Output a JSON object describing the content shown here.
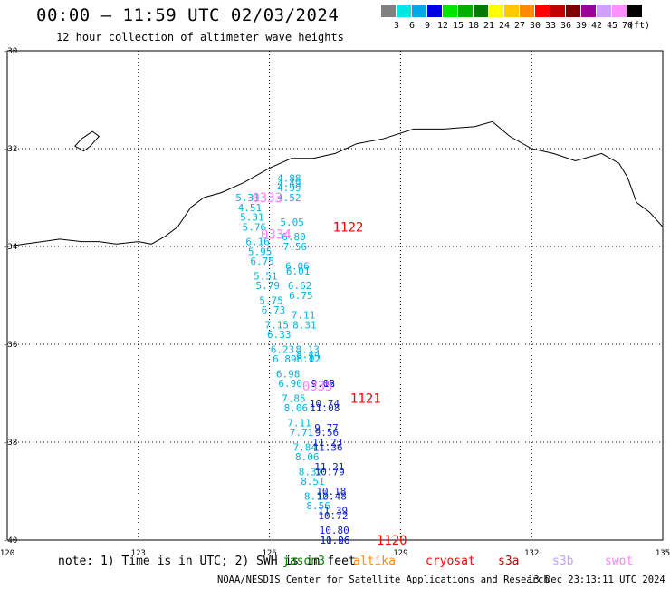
{
  "header": {
    "title": "00:00 – 11:59 UTC 02/03/2024",
    "subtitle": "12 hour collection of altimeter wave heights"
  },
  "legend": {
    "unit": "(ft)",
    "colors": [
      "#808080",
      "#00e5e5",
      "#00a8e5",
      "#0000e5",
      "#00e500",
      "#00b000",
      "#007a00",
      "#ffff00",
      "#ffc800",
      "#ff8c00",
      "#ff0000",
      "#c00000",
      "#800000",
      "#9b009b",
      "#d0a0ff",
      "#ff90ff",
      "#000000"
    ],
    "labels": [
      "3",
      "6",
      "9",
      "12",
      "15",
      "18",
      "21",
      "24",
      "27",
      "30",
      "33",
      "36",
      "39",
      "42",
      "45",
      "70"
    ]
  },
  "map": {
    "lon_labels": [
      "120",
      "123",
      "126",
      "129",
      "132",
      "135"
    ],
    "lat_labels": [
      "-30",
      "-32",
      "-34",
      "-36",
      "-38",
      "-40"
    ],
    "swh_cyan": [
      [
        "5.31",
        -33.0
      ],
      [
        "4.51",
        -33.2
      ],
      [
        "5.31",
        -33.4
      ],
      [
        "5.76",
        -33.6
      ],
      [
        "6.16",
        -33.9
      ],
      [
        "5.95",
        -34.1
      ],
      [
        "6.75",
        -34.3
      ],
      [
        "5.51",
        -34.6
      ],
      [
        "5.79",
        -34.8
      ],
      [
        "5.75",
        -35.1
      ],
      [
        "6.73",
        -35.3
      ],
      [
        "7.15",
        -35.6
      ],
      [
        "6.33",
        -35.8
      ],
      [
        "6.23",
        -36.1
      ],
      [
        "6.89",
        -36.3
      ],
      [
        "6.98",
        -36.6
      ],
      [
        "6.90",
        -36.8
      ],
      [
        "7.85",
        -37.1
      ],
      [
        "8.06",
        -37.3
      ],
      [
        "7.11",
        -37.6
      ],
      [
        "7.71",
        -37.8
      ],
      [
        "7.84",
        -38.1
      ],
      [
        "8.06",
        -38.3
      ],
      [
        "8.37",
        -38.6
      ],
      [
        "8.51",
        -38.8
      ],
      [
        "8.12",
        -39.1
      ],
      [
        "8.56",
        -39.3
      ]
    ],
    "swh_cyan2": [
      [
        "4.88",
        -32.6
      ],
      [
        "4.49",
        -32.7
      ],
      [
        "4.99",
        -32.8
      ],
      [
        "4.52",
        -33.0
      ],
      [
        "5.05",
        -33.5
      ],
      [
        "6.80",
        -33.8
      ],
      [
        "7.56",
        -34.0
      ],
      [
        "6.06",
        -34.4
      ],
      [
        "6.01",
        -34.5
      ],
      [
        "6.62",
        -34.8
      ],
      [
        "6.75",
        -35.0
      ],
      [
        "7.11",
        -35.4
      ],
      [
        "8.31",
        -35.6
      ],
      [
        "8.13",
        -36.1
      ],
      [
        "8.44",
        -36.2
      ],
      [
        "8.12",
        -36.3
      ],
      [
        "6.02",
        -36.3
      ]
    ],
    "swh_blue": [
      [
        "9.18",
        -36.8
      ],
      [
        "9.02",
        -36.8
      ],
      [
        "10.74",
        -37.2
      ],
      [
        "11.08",
        -37.3
      ],
      [
        "9.77",
        -37.7
      ],
      [
        "9.56",
        -37.8
      ],
      [
        "11.23",
        -38.0
      ],
      [
        "11.36",
        -38.1
      ],
      [
        "11.21",
        -38.5
      ],
      [
        "10.79",
        -38.6
      ],
      [
        "10.18",
        -39.0
      ],
      [
        "10.48",
        -39.1
      ],
      [
        "11.39",
        -39.4
      ],
      [
        "10.72",
        -39.5
      ],
      [
        "10.80",
        -39.8
      ],
      [
        "11.06",
        -40.0
      ],
      [
        "10.26",
        -40.0
      ]
    ],
    "pass_times": [
      {
        "text": "0333",
        "lon": 125.95,
        "lat": -33.0,
        "color": "#ff80ff"
      },
      {
        "text": "0334",
        "lon": 126.15,
        "lat": -33.75,
        "color": "#ff80ff"
      },
      {
        "text": "0335",
        "lon": 127.1,
        "lat": -36.85,
        "color": "#ff80ff"
      },
      {
        "text": "1122",
        "lon": 127.8,
        "lat": -33.6,
        "color": "#ff0000"
      },
      {
        "text": "1121",
        "lon": 128.2,
        "lat": -37.1,
        "color": "#ff0000"
      },
      {
        "text": "1120",
        "lon": 128.8,
        "lat": -40.0,
        "color": "#ff0000"
      }
    ]
  },
  "footer": {
    "note": "note: 1) Time is in UTC; 2) SWH is in feet",
    "satellites": [
      {
        "name": "jason3",
        "color": "#008000"
      },
      {
        "name": "altika",
        "color": "#ff8c00"
      },
      {
        "name": "cryosat",
        "color": "#ff0000"
      },
      {
        "name": "s3a",
        "color": "#c00000"
      },
      {
        "name": "s3b",
        "color": "#c0a0ff"
      },
      {
        "name": "swot",
        "color": "#ff80ff"
      }
    ],
    "credit": "NOAA/NESDIS Center for Satellite Applications and Research",
    "timestamp": "13 Dec 23:13:11 UTC 2024"
  }
}
